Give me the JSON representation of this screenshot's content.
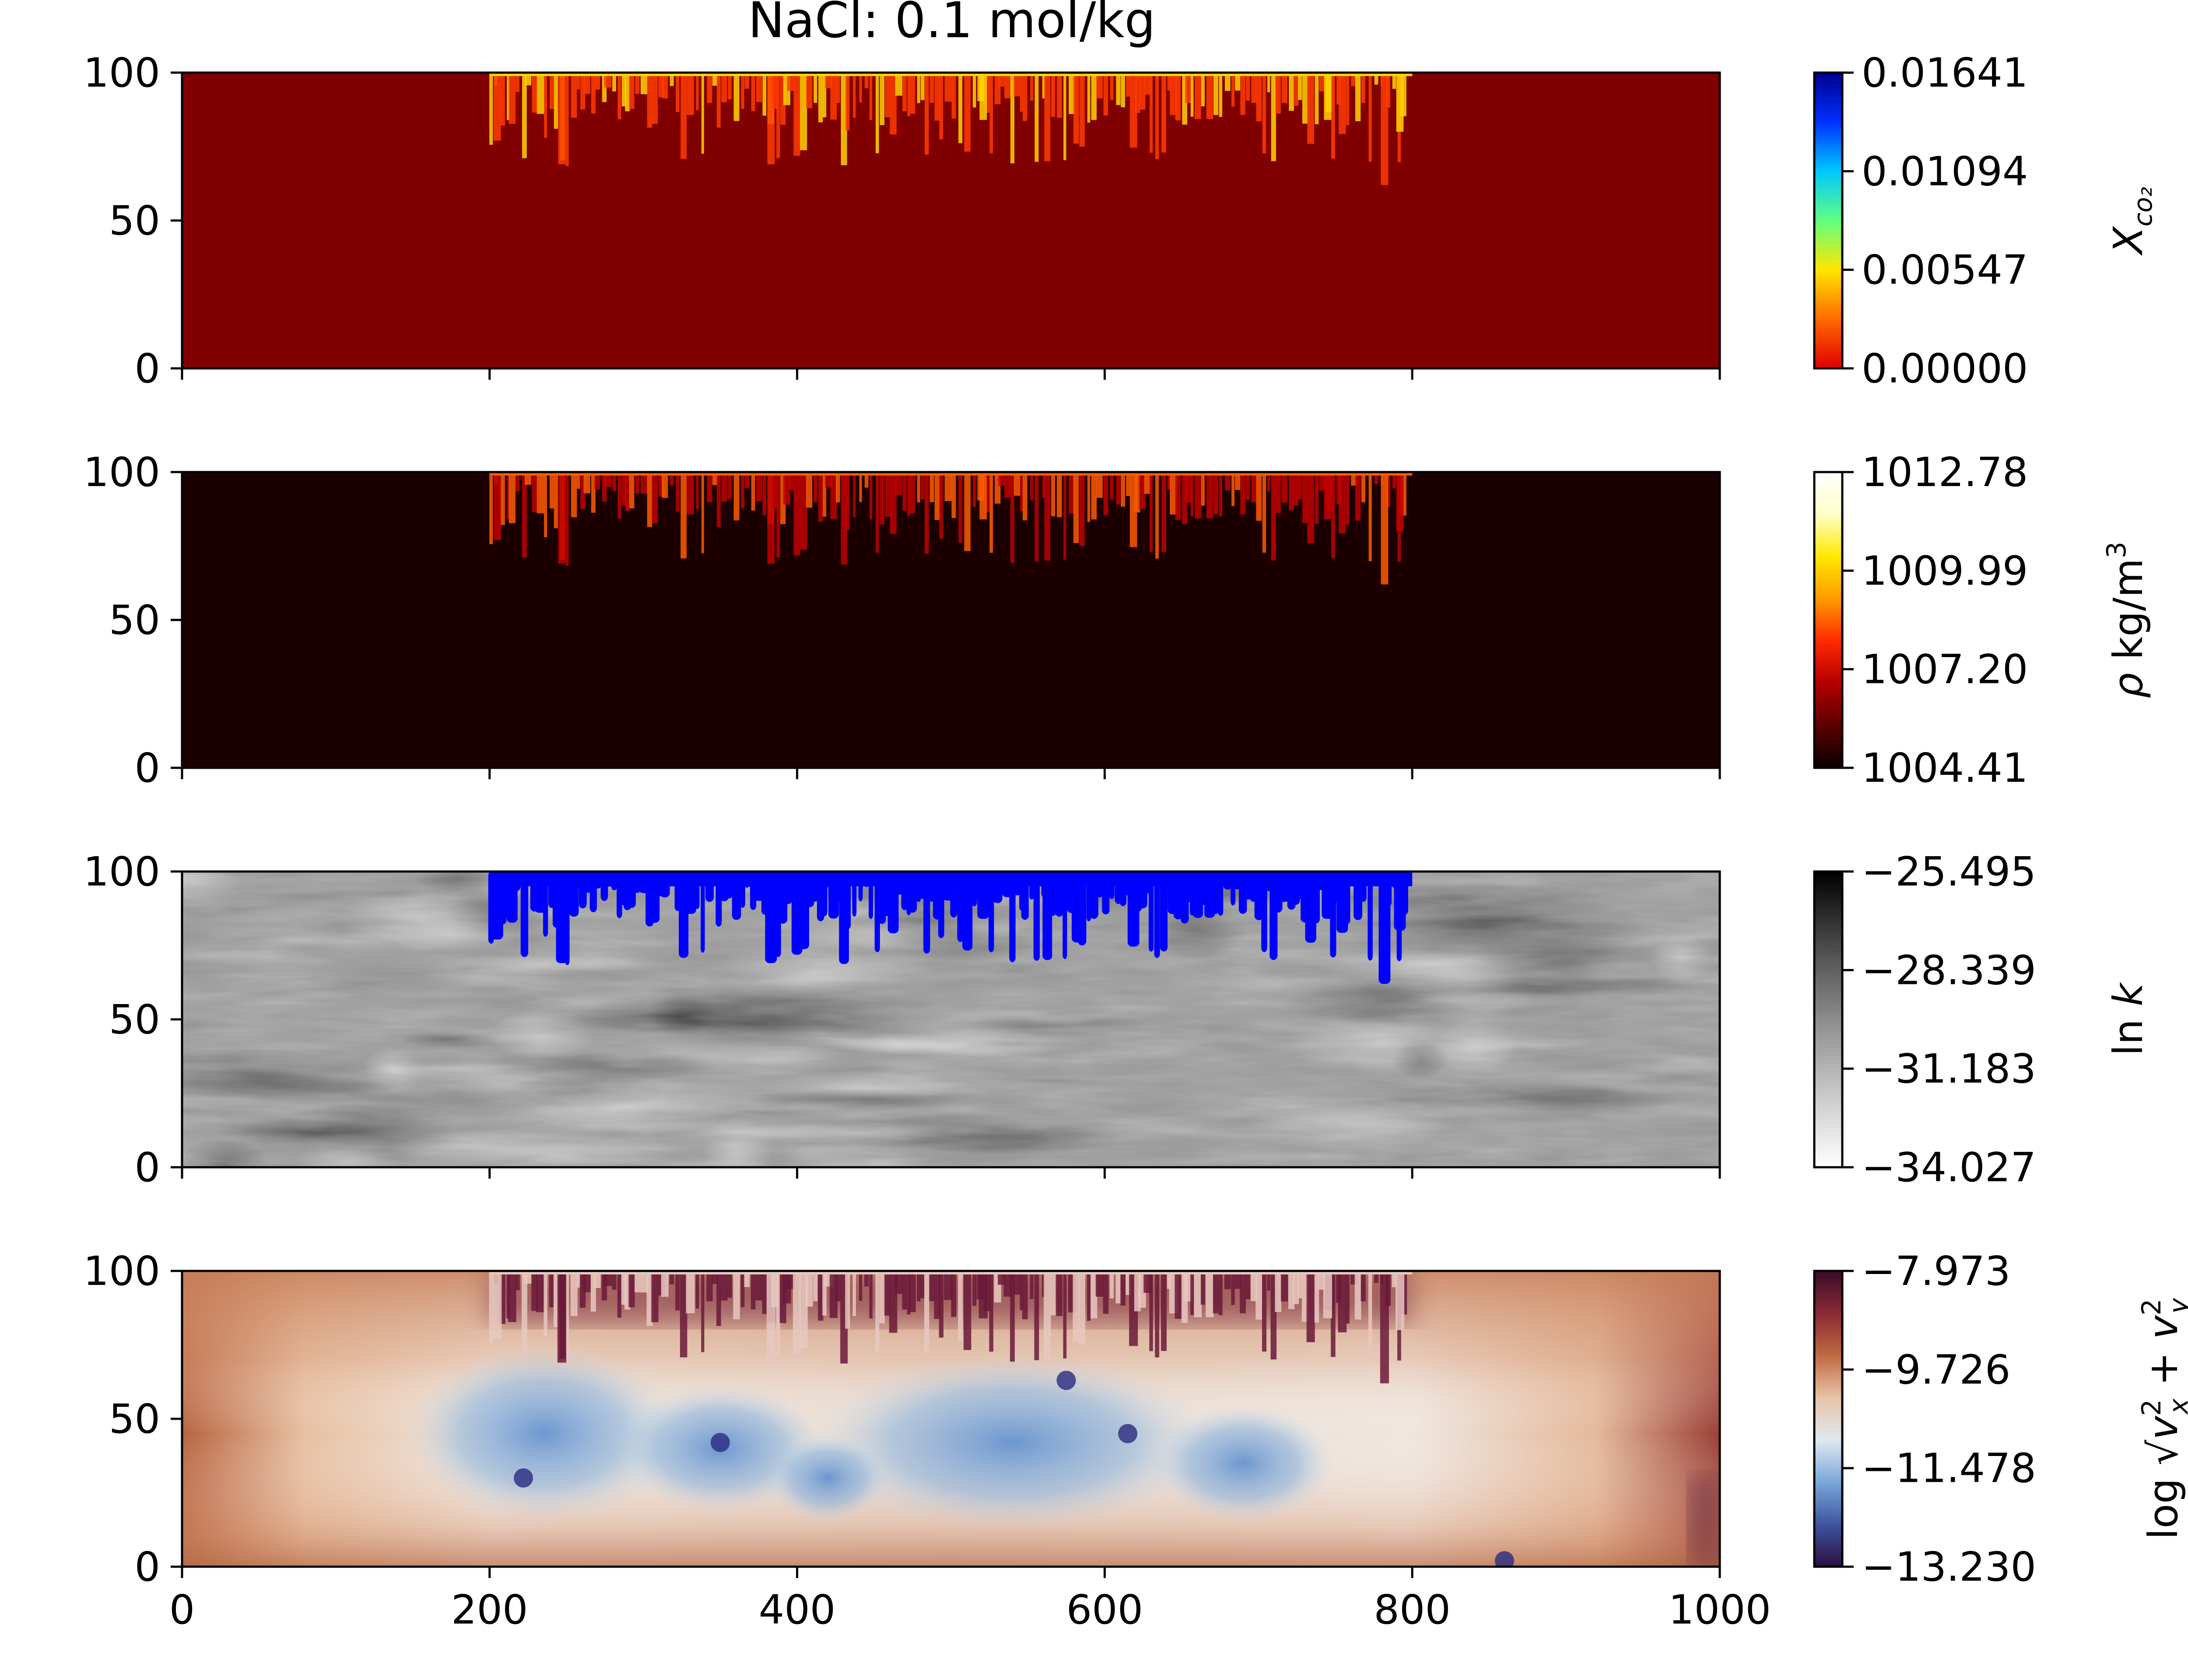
{
  "figure_title": "NaCl: 0.1 mol/kg",
  "chart_data": [
    {
      "type": "heatmap",
      "name": "co2-mole-fraction",
      "xlim": [
        0,
        1000
      ],
      "ylim": [
        0,
        100
      ],
      "yticks": [
        "0",
        "50",
        "100"
      ],
      "xticks": [],
      "colormap": "jet-like",
      "background_color": "#800000",
      "colorbar": {
        "label": "X_co2",
        "label_main": "X",
        "label_sub": "co₂",
        "ticks": [
          "0.00000",
          "0.00547",
          "0.01094",
          "0.01641"
        ],
        "range": [
          0.0,
          0.01641
        ],
        "colors": [
          "#e00000",
          "#ff6a00",
          "#ffe600",
          "#60ff80",
          "#00c8ff",
          "#0030ff",
          "#00008f"
        ]
      },
      "fingers": {
        "x_range": [
          200,
          800
        ],
        "min_depth": 62,
        "color_main": "#ff3b00",
        "color_hot": "#ffd400"
      }
    },
    {
      "type": "heatmap",
      "name": "density",
      "xlim": [
        0,
        1000
      ],
      "ylim": [
        0,
        100
      ],
      "yticks": [
        "0",
        "50",
        "100"
      ],
      "xticks": [],
      "colormap": "hot",
      "background_color": "#1c0000",
      "colorbar": {
        "label": "ρ kg/m³",
        "label_rho": "ρ",
        "label_unit": "kg/m",
        "label_exp": "3",
        "ticks": [
          "1004.41",
          "1007.20",
          "1009.99",
          "1012.78"
        ],
        "range": [
          1004.41,
          1012.78
        ],
        "colors": [
          "#0a0000",
          "#5a0000",
          "#b40000",
          "#ff2a00",
          "#ff9a00",
          "#ffe800",
          "#ffffc8",
          "#ffffff"
        ]
      },
      "fingers": {
        "x_range": [
          200,
          800
        ],
        "min_depth": 62,
        "color_main": "#c00000",
        "color_hot": "#ff5a00"
      }
    },
    {
      "type": "heatmap",
      "name": "log-permeability",
      "xlim": [
        0,
        1000
      ],
      "ylim": [
        0,
        100
      ],
      "yticks": [
        "0",
        "50",
        "100"
      ],
      "xticks": [],
      "colormap": "gray-reversed",
      "background_color": "#9a9a9a",
      "overlay_color": "#0000ff",
      "colorbar": {
        "label": "ln k",
        "label_ln": "ln",
        "label_k": "k",
        "ticks": [
          "−34.027",
          "−31.183",
          "−28.339",
          "−25.495"
        ],
        "range": [
          -34.027,
          -25.495
        ],
        "colors": [
          "#ffffff",
          "#c8c8c8",
          "#8c8c8c",
          "#4a4a4a",
          "#000000"
        ]
      },
      "fingers": {
        "x_range": [
          200,
          800
        ],
        "min_depth": 62,
        "color_main": "#0000ff",
        "color_hot": "#0000ff"
      }
    },
    {
      "type": "heatmap",
      "name": "log-velocity-magnitude",
      "xlim": [
        0,
        1000
      ],
      "ylim": [
        0,
        100
      ],
      "yticks": [
        "0",
        "50",
        "100"
      ],
      "xticks": [
        "0",
        "200",
        "400",
        "600",
        "800",
        "1000"
      ],
      "colormap": "twilight-like",
      "background_color": "#c9855a",
      "colorbar": {
        "label": "log √(v_x² + v_y²)",
        "label_log": "log",
        "label_vx": "v",
        "label_x": "x",
        "label_2": "2",
        "label_plus": "+",
        "label_vy": "v",
        "label_y": "y",
        "label_2b": "2",
        "ticks": [
          "−13.230",
          "−11.478",
          "−9.726",
          "−7.973"
        ],
        "range": [
          -13.23,
          -7.973
        ],
        "colors": [
          "#2a1040",
          "#3e55a0",
          "#7aa8d8",
          "#dfe8ef",
          "#e8c3a8",
          "#c06a40",
          "#8a2a36",
          "#3a0c2a"
        ]
      },
      "fingers": {
        "x_range": [
          200,
          800
        ],
        "min_depth": 62,
        "color_main": "#6a1a3a",
        "color_hot": "#e8c8c0"
      }
    }
  ]
}
